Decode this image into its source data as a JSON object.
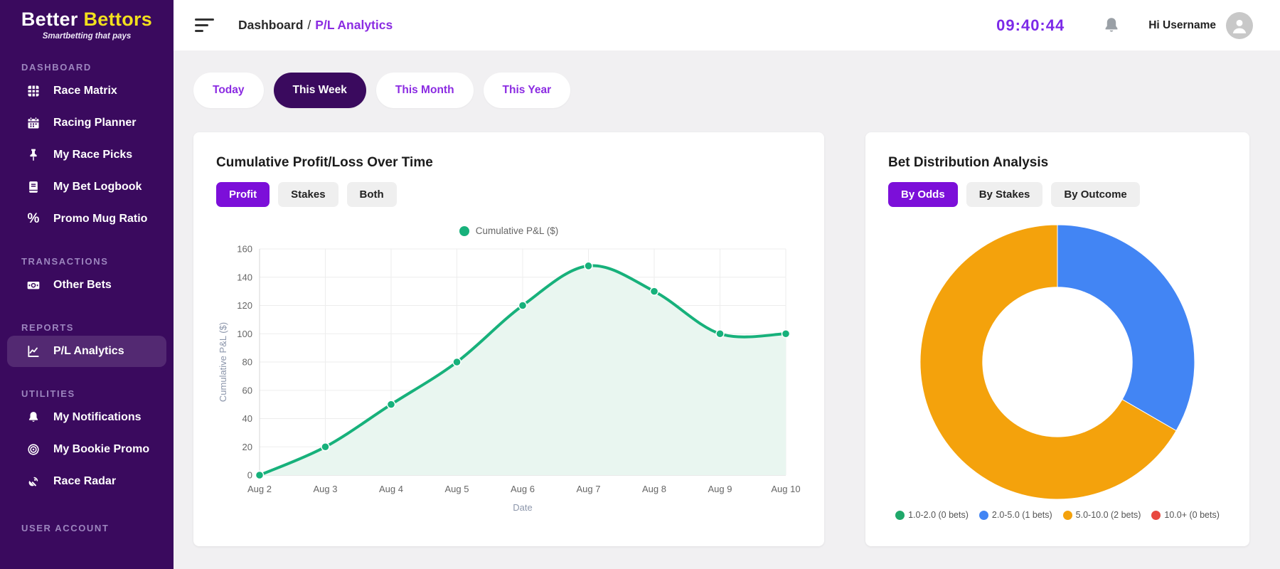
{
  "app": {
    "brand_first": "Better",
    "brand_second": "Bettors",
    "tagline": "Smartbetting that pays"
  },
  "sidebar": {
    "sections": [
      {
        "label": "DASHBOARD",
        "items": [
          {
            "label": "Race Matrix",
            "icon": "grid-icon"
          },
          {
            "label": "Racing Planner",
            "icon": "calendar-icon"
          },
          {
            "label": "My Race Picks",
            "icon": "pin-icon"
          },
          {
            "label": "My Bet Logbook",
            "icon": "book-icon"
          },
          {
            "label": "Promo Mug Ratio",
            "icon": "percent-icon"
          }
        ]
      },
      {
        "label": "TRANSACTIONS",
        "items": [
          {
            "label": "Other Bets",
            "icon": "banknote-icon"
          }
        ]
      },
      {
        "label": "REPORTS",
        "items": [
          {
            "label": "P/L Analytics",
            "icon": "chart-line-icon",
            "active": true
          }
        ]
      },
      {
        "label": "UTILITIES",
        "items": [
          {
            "label": "My Notifications",
            "icon": "bell-icon"
          },
          {
            "label": "My Bookie Promo",
            "icon": "target-icon"
          },
          {
            "label": "Race Radar",
            "icon": "radar-icon"
          }
        ]
      },
      {
        "label": "USER ACCOUNT",
        "items": []
      }
    ]
  },
  "header": {
    "breadcrumb_root": "Dashboard",
    "breadcrumb_separator": "/",
    "breadcrumb_current": "P/L Analytics",
    "clock": "09:40:44",
    "greeting": "Hi Username"
  },
  "filters": {
    "options": [
      "Today",
      "This Week",
      "This Month",
      "This Year"
    ],
    "active": "This Week"
  },
  "pl_card": {
    "title": "Cumulative Profit/Loss Over Time",
    "tabs": [
      "Profit",
      "Stakes",
      "Both"
    ],
    "active_tab": "Profit"
  },
  "dist_card": {
    "title": "Bet Distribution Analysis",
    "tabs": [
      "By Odds",
      "By Stakes",
      "By Outcome"
    ],
    "active_tab": "By Odds"
  },
  "colors": {
    "sidebar_bg": "#3A0A5E",
    "brand_yellow": "#F2DF1D",
    "accent_purple": "#7C0FD9",
    "clock_purple": "#7C2AE8",
    "breadcrumb_purple": "#8B2CE2",
    "line_green": "#17B17B",
    "area_green": "#E9F6F0",
    "donut_blue": "#4285F4",
    "donut_orange": "#F4A20C",
    "legend_green": "#1FA86A",
    "legend_red": "#E8483F"
  },
  "chart_data": [
    {
      "type": "line",
      "title": "Cumulative Profit/Loss Over Time",
      "categories": [
        "Aug 2",
        "Aug 3",
        "Aug 4",
        "Aug 5",
        "Aug 6",
        "Aug 7",
        "Aug 8",
        "Aug 9",
        "Aug 10"
      ],
      "series": [
        {
          "name": "Cumulative P&L ($)",
          "values": [
            0,
            20,
            50,
            80,
            120,
            148,
            130,
            100,
            100
          ]
        }
      ],
      "xlabel": "Date",
      "ylabel": "Cumulative P&L ($)",
      "ylim": [
        0,
        160
      ],
      "yticks": [
        0,
        20,
        40,
        60,
        80,
        100,
        120,
        140,
        160
      ],
      "grid": true,
      "legend_position": "top",
      "smooth": true,
      "line_color": "#17B17B",
      "area_fill": "#E9F6F0",
      "grid_color": "#EDEDED",
      "axis_color": "#DDDDDD",
      "tick_color": "#666666",
      "axis_title_color": "#8C96AB",
      "point_radius": 5.5
    },
    {
      "type": "pie",
      "title": "Bet Distribution Analysis",
      "donut": true,
      "inner_radius_ratio": 0.545,
      "start_angle_deg": -90,
      "clockwise": true,
      "legend_position": "bottom",
      "slices": [
        {
          "label": "1.0-2.0 (0 bets)",
          "value": 0,
          "color": "#1FA86A"
        },
        {
          "label": "2.0-5.0 (1 bets)",
          "value": 1,
          "color": "#4285F4"
        },
        {
          "label": "5.0-10.0 (2 bets)",
          "value": 2,
          "color": "#F4A20C"
        },
        {
          "label": "10.0+ (0 bets)",
          "value": 0,
          "color": "#E8483F"
        }
      ]
    }
  ]
}
